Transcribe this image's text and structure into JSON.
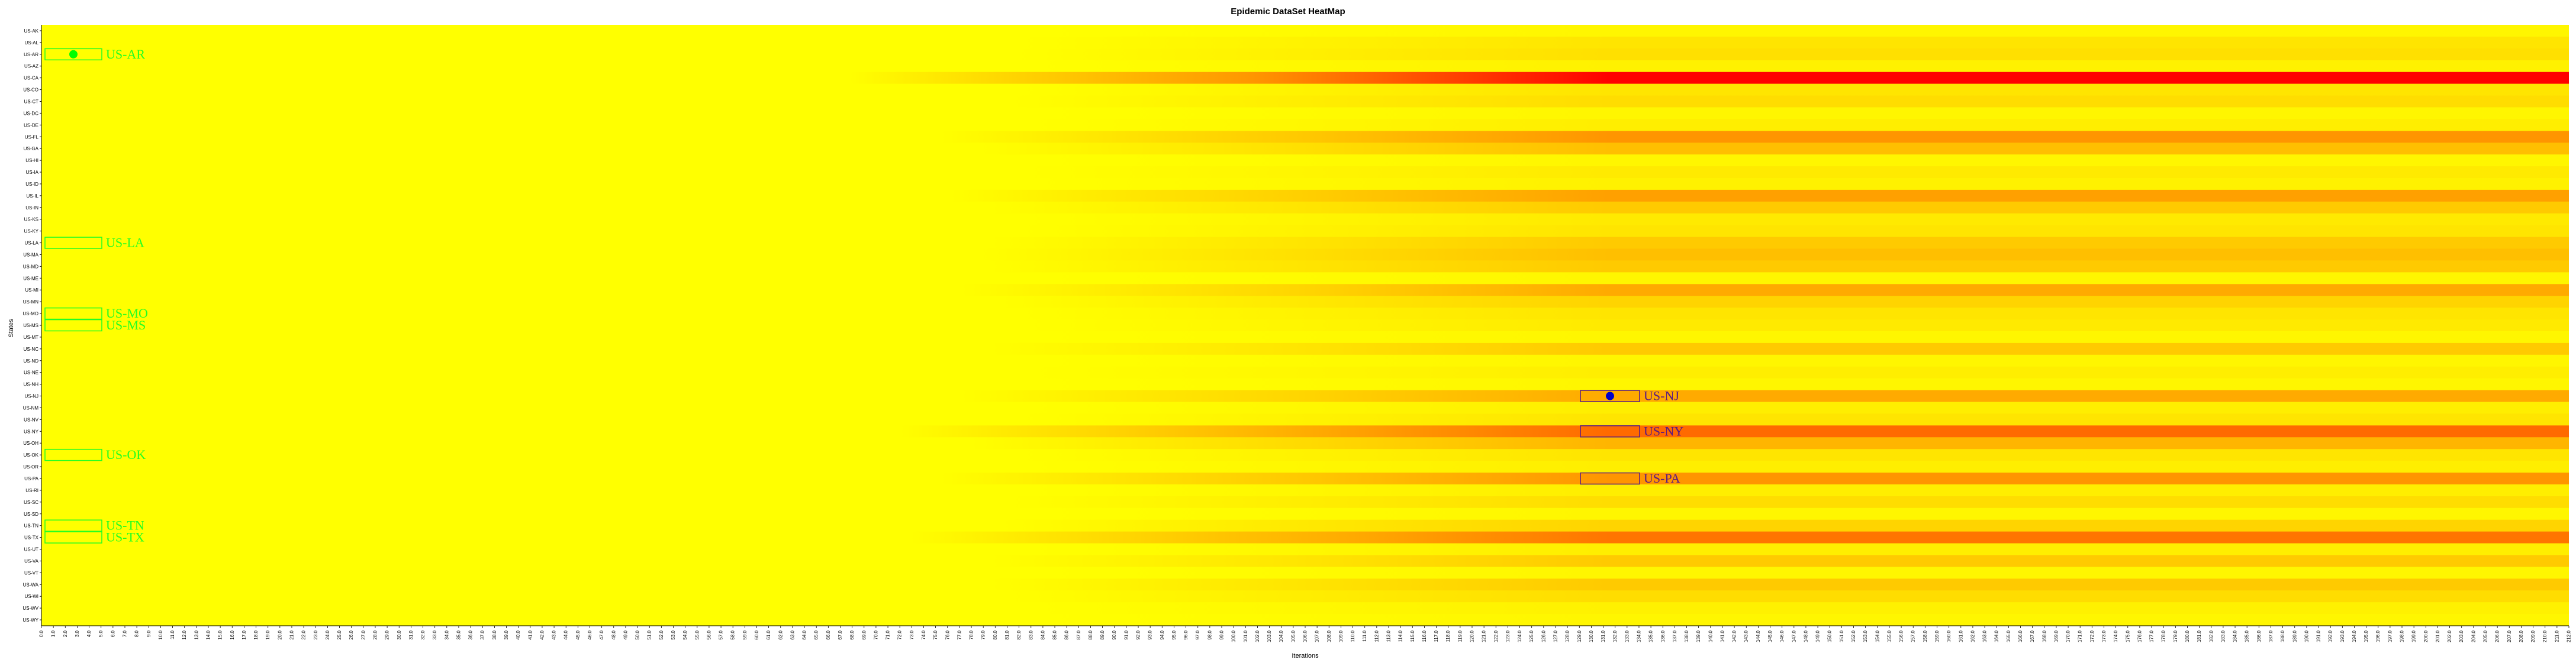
{
  "chart_data": {
    "type": "heatmap",
    "title": "Epidemic DataSet HeatMap",
    "xlabel": "Iterations",
    "ylabel": "States",
    "y_categories": [
      "US-AK",
      "US-AL",
      "US-AR",
      "US-AZ",
      "US-CA",
      "US-CO",
      "US-CT",
      "US-DC",
      "US-DE",
      "US-FL",
      "US-GA",
      "US-HI",
      "US-IA",
      "US-ID",
      "US-IL",
      "US-IN",
      "US-KS",
      "US-KY",
      "US-LA",
      "US-MA",
      "US-MD",
      "US-ME",
      "US-MI",
      "US-MN",
      "US-MO",
      "US-MS",
      "US-MT",
      "US-NC",
      "US-ND",
      "US-NE",
      "US-NH",
      "US-NJ",
      "US-NM",
      "US-NV",
      "US-NY",
      "US-OH",
      "US-OK",
      "US-OR",
      "US-PA",
      "US-RI",
      "US-SC",
      "US-SD",
      "US-TN",
      "US-TX",
      "US-UT",
      "US-VA",
      "US-VT",
      "US-WA",
      "US-WI",
      "US-WV",
      "US-WY"
    ],
    "x_range": [
      0,
      212
    ],
    "x_tick_step": 1,
    "color_scale": [
      "#ffff00",
      "#ffd400",
      "#ffa000",
      "#ff6a00",
      "#ff0000"
    ],
    "final_intensity": [
      0.05,
      0.15,
      0.18,
      0.08,
      1.0,
      0.15,
      0.2,
      0.05,
      0.1,
      0.55,
      0.35,
      0.05,
      0.12,
      0.08,
      0.5,
      0.3,
      0.12,
      0.15,
      0.3,
      0.35,
      0.3,
      0.05,
      0.45,
      0.25,
      0.15,
      0.12,
      0.05,
      0.3,
      0.05,
      0.1,
      0.05,
      0.45,
      0.1,
      0.15,
      0.75,
      0.4,
      0.15,
      0.1,
      0.55,
      0.1,
      0.2,
      0.05,
      0.25,
      0.7,
      0.1,
      0.3,
      0.05,
      0.3,
      0.2,
      0.08,
      0.05
    ],
    "highlight_colors": {
      "low": "#22ff22",
      "high": "#5a1a82",
      "marker_low": "#00ff00",
      "marker_high": "#0000cc"
    },
    "annotations_low": [
      {
        "state": "US-AR",
        "label": "US-AR",
        "marker": true
      },
      {
        "state": "US-LA",
        "label": "US-LA",
        "marker": false
      },
      {
        "state": "US-MO",
        "label": "US-MO",
        "marker": false
      },
      {
        "state": "US-MS",
        "label": "US-MS",
        "marker": false
      },
      {
        "state": "US-OK",
        "label": "US-OK",
        "marker": false
      },
      {
        "state": "US-TN",
        "label": "US-TN",
        "marker": false
      },
      {
        "state": "US-TX",
        "label": "US-TX",
        "marker": false
      }
    ],
    "annotations_high": [
      {
        "state": "US-NJ",
        "label": "US-NJ",
        "marker": true
      },
      {
        "state": "US-NY",
        "label": "US-NY",
        "marker": false
      },
      {
        "state": "US-PA",
        "label": "US-PA",
        "marker": false
      }
    ]
  }
}
